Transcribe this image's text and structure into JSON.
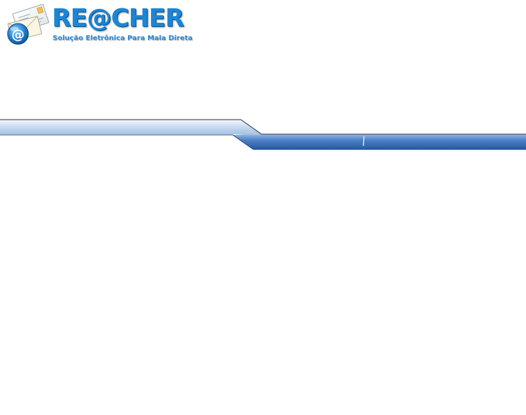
{
  "brand": {
    "title": "RE@CHER",
    "subtitle": "Solução Eletrônica Para Mala Direta"
  },
  "icons": {
    "logo": "envelope-at-icon"
  },
  "colors": {
    "brand_blue": "#1b86d6",
    "band_dark_blue": "#2d5fa8",
    "band_light_blue": "#d9e6f5",
    "background": "#ffffff"
  }
}
